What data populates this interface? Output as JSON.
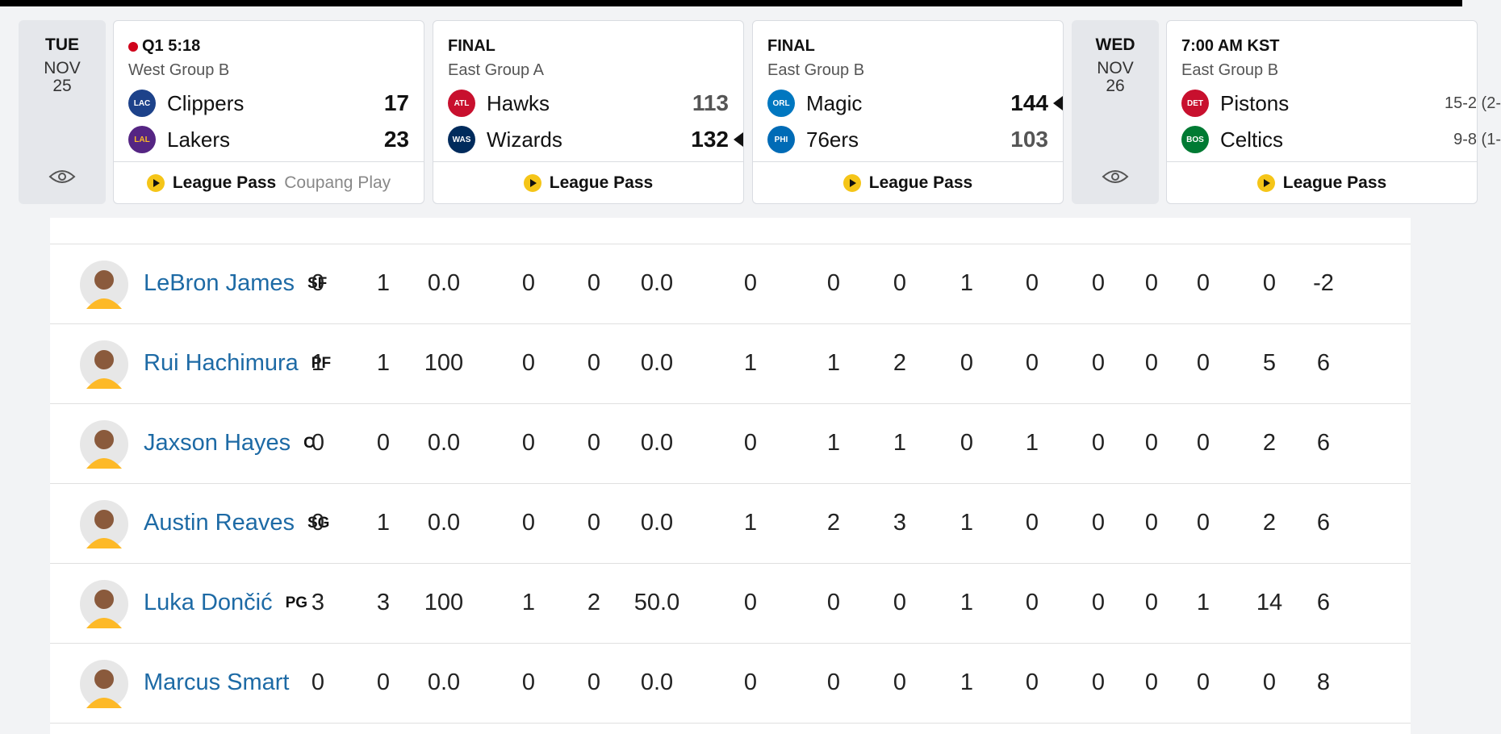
{
  "scoreboard": {
    "dates": [
      {
        "dow": "TUE",
        "month": "NOV",
        "day": "25"
      },
      {
        "dow": "WED",
        "month": "NOV",
        "day": "26"
      }
    ],
    "games": [
      {
        "status": "Q1 5:18",
        "live": true,
        "group": "West Group B",
        "team1": {
          "name": "Clippers",
          "score": "17",
          "logo": "clippers-logo",
          "color": "#1d428a"
        },
        "team2": {
          "name": "Lakers",
          "score": "23",
          "logo": "lakers-logo",
          "color": "#552583"
        },
        "broadcast": "League Pass",
        "broadcast2": "Coupang Play"
      },
      {
        "status": "FINAL",
        "live": false,
        "group": "East Group A",
        "team1": {
          "name": "Hawks",
          "score": "113",
          "logo": "hawks-logo",
          "color": "#c8102e"
        },
        "team2": {
          "name": "Wizards",
          "score": "132",
          "logo": "wizards-logo",
          "color": "#002b5c"
        },
        "broadcast": "League Pass"
      },
      {
        "status": "FINAL",
        "live": false,
        "group": "East Group B",
        "team1": {
          "name": "Magic",
          "score": "144",
          "logo": "magic-logo",
          "color": "#0077c0"
        },
        "team2": {
          "name": "76ers",
          "score": "103",
          "logo": "76ers-logo",
          "color": "#006bb6"
        },
        "broadcast": "League Pass"
      },
      {
        "status": "7:00 AM KST",
        "live": false,
        "group": "East Group B",
        "team1": {
          "name": "Pistons",
          "score": "15-2 (2-",
          "logo": "pistons-logo",
          "color": "#c8102e"
        },
        "team2": {
          "name": "Celtics",
          "score": "9-8 (1-",
          "logo": "celtics-logo",
          "color": "#007a33"
        },
        "broadcast": "League Pass"
      }
    ]
  },
  "players": [
    {
      "name": "LeBron James",
      "pos": "SF",
      "stats": [
        "0",
        "1",
        "0.0",
        "0",
        "0",
        "0.0",
        "0",
        "0",
        "0",
        "1",
        "0",
        "0",
        "0",
        "0",
        "0",
        "-2"
      ]
    },
    {
      "name": "Rui Hachimura",
      "pos": "PF",
      "stats": [
        "1",
        "1",
        "100",
        "0",
        "0",
        "0.0",
        "1",
        "1",
        "2",
        "0",
        "0",
        "0",
        "0",
        "0",
        "5",
        "6"
      ]
    },
    {
      "name": "Jaxson Hayes",
      "pos": "C",
      "stats": [
        "0",
        "0",
        "0.0",
        "0",
        "0",
        "0.0",
        "0",
        "1",
        "1",
        "0",
        "1",
        "0",
        "0",
        "0",
        "2",
        "6"
      ]
    },
    {
      "name": "Austin Reaves",
      "pos": "SG",
      "stats": [
        "0",
        "1",
        "0.0",
        "0",
        "0",
        "0.0",
        "1",
        "2",
        "3",
        "1",
        "0",
        "0",
        "0",
        "0",
        "2",
        "6"
      ]
    },
    {
      "name": "Luka Dončić",
      "pos": "PG",
      "stats": [
        "3",
        "3",
        "100",
        "1",
        "2",
        "50.0",
        "0",
        "0",
        "0",
        "1",
        "0",
        "0",
        "0",
        "1",
        "14",
        "6"
      ]
    },
    {
      "name": "Marcus Smart",
      "pos": "",
      "stats": [
        "0",
        "0",
        "0.0",
        "0",
        "0",
        "0.0",
        "0",
        "0",
        "0",
        "1",
        "0",
        "0",
        "0",
        "0",
        "0",
        "8"
      ]
    }
  ]
}
